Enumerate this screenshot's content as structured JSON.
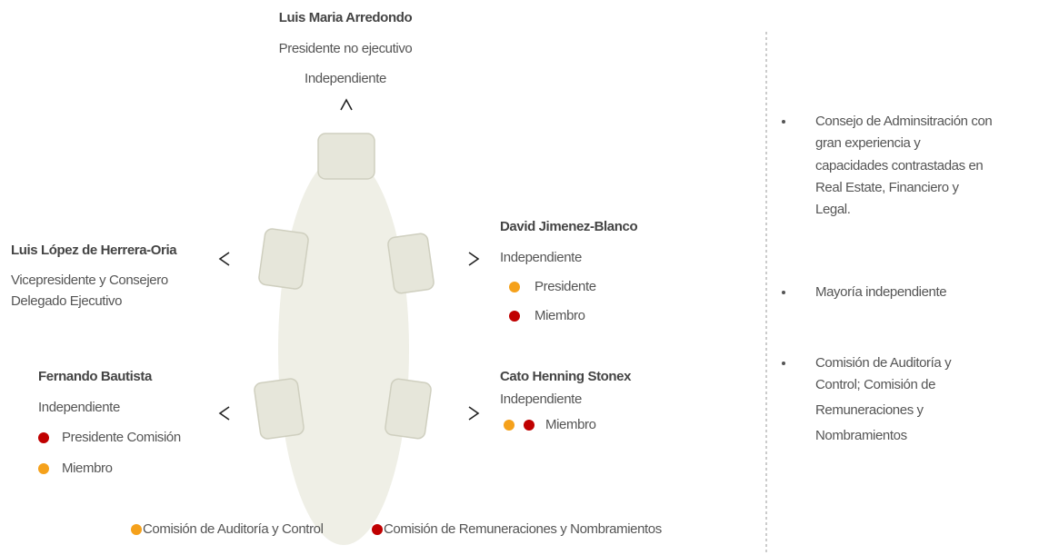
{
  "board": {
    "members": [
      {
        "name": "Luis Maria Arredondo",
        "roles": [
          "Presidente no ejecutivo",
          "Independiente"
        ],
        "committees": []
      },
      {
        "name": "Luis López de Herrera-Oria",
        "roles": [
          "Vicepresidente y Consejero",
          "Delegado Ejecutivo"
        ],
        "committees": []
      },
      {
        "name": "David Jimenez-Blanco",
        "roles": [
          "Independiente"
        ],
        "committees": [
          {
            "colors": [
              "#f5a11b"
            ],
            "label": "Presidente"
          },
          {
            "colors": [
              "#c00000"
            ],
            "label": "Miembro"
          }
        ]
      },
      {
        "name": "Fernando Bautista",
        "roles": [
          "Independiente"
        ],
        "committees": [
          {
            "colors": [
              "#c00000"
            ],
            "label": "Presidente Comisión"
          },
          {
            "colors": [
              "#f5a11b"
            ],
            "label": "Miembro"
          }
        ]
      },
      {
        "name": "Cato Henning Stonex",
        "roles": [
          "Independiente"
        ],
        "committees": [
          {
            "colors": [
              "#f5a11b",
              "#c00000"
            ],
            "label": "Miembro"
          }
        ]
      }
    ]
  },
  "legend": [
    {
      "color": "#f5a11b",
      "label": "Comisión de Auditoría y Control"
    },
    {
      "color": "#c00000",
      "label": "Comisión de Remuneraciones y Nombramientos"
    }
  ],
  "highlights": [
    {
      "lines": [
        "Consejo de Adminsitración con",
        "gran experiencia y",
        "capacidades contrastadas en",
        "Real Estate, Financiero y",
        "Legal."
      ]
    },
    {
      "lines": [
        "Mayoría independiente"
      ]
    },
    {
      "lines": [
        "Comisión de Auditoría y",
        "Control; Comisión de",
        "Remuneraciones y",
        "Nombramientos"
      ]
    }
  ]
}
